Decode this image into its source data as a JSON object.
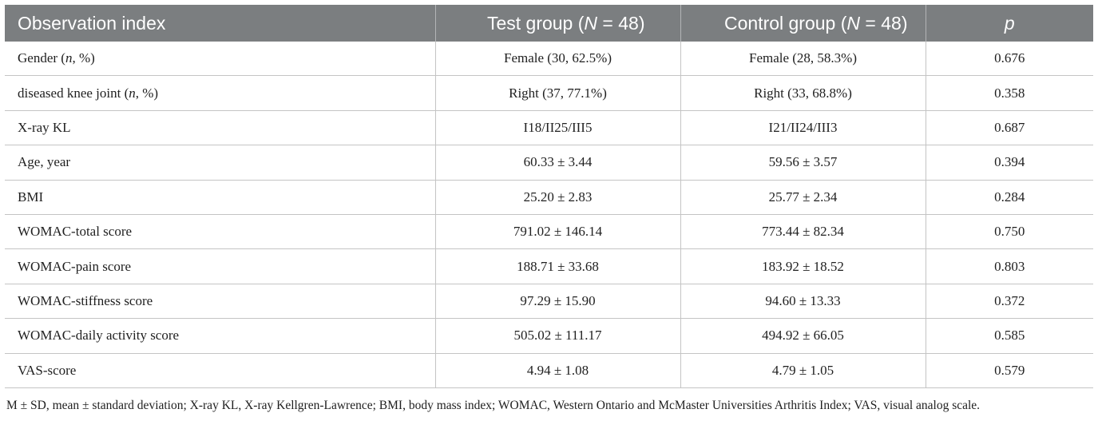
{
  "table": {
    "headers": {
      "col0": "Observation index",
      "col1_pre": "Test group (",
      "col1_var": "N",
      "col1_post": " = 48)",
      "col2_pre": "Control group (",
      "col2_var": "N",
      "col2_post": " = 48)",
      "col3": "p"
    },
    "rows": [
      {
        "label_pre": "Gender (",
        "label_var": "n",
        "label_post": ", %)",
        "test": "Female (30, 62.5%)",
        "control": "Female (28, 58.3%)",
        "p": "0.676"
      },
      {
        "label_pre": "diseased knee joint (",
        "label_var": "n",
        "label_post": ", %)",
        "test": "Right (37, 77.1%)",
        "control": "Right (33, 68.8%)",
        "p": "0.358"
      },
      {
        "label": "X-ray KL",
        "test": "I18/II25/III5",
        "control": "I21/II24/III3",
        "p": "0.687"
      },
      {
        "label": "Age, year",
        "test": "60.33 ± 3.44",
        "control": "59.56 ± 3.57",
        "p": "0.394"
      },
      {
        "label": "BMI",
        "test": "25.20 ± 2.83",
        "control": "25.77 ± 2.34",
        "p": "0.284"
      },
      {
        "label": "WOMAC-total score",
        "test": "791.02 ± 146.14",
        "control": "773.44 ± 82.34",
        "p": "0.750"
      },
      {
        "label": "WOMAC-pain score",
        "test": "188.71 ± 33.68",
        "control": "183.92 ± 18.52",
        "p": "0.803"
      },
      {
        "label": "WOMAC-stiffness score",
        "test": "97.29 ± 15.90",
        "control": "94.60 ± 13.33",
        "p": "0.372"
      },
      {
        "label": "WOMAC-daily activity score",
        "test": "505.02 ± 111.17",
        "control": "494.92 ± 66.05",
        "p": "0.585"
      },
      {
        "label": "VAS-score",
        "test": "4.94 ± 1.08",
        "control": "4.79 ± 1.05",
        "p": "0.579"
      }
    ]
  },
  "footnote": "M ± SD, mean ± standard deviation; X-ray KL, X-ray Kellgren-Lawrence; BMI, body mass index; WOMAC, Western Ontario and McMaster Universities Arthritis Index; VAS, visual analog scale."
}
